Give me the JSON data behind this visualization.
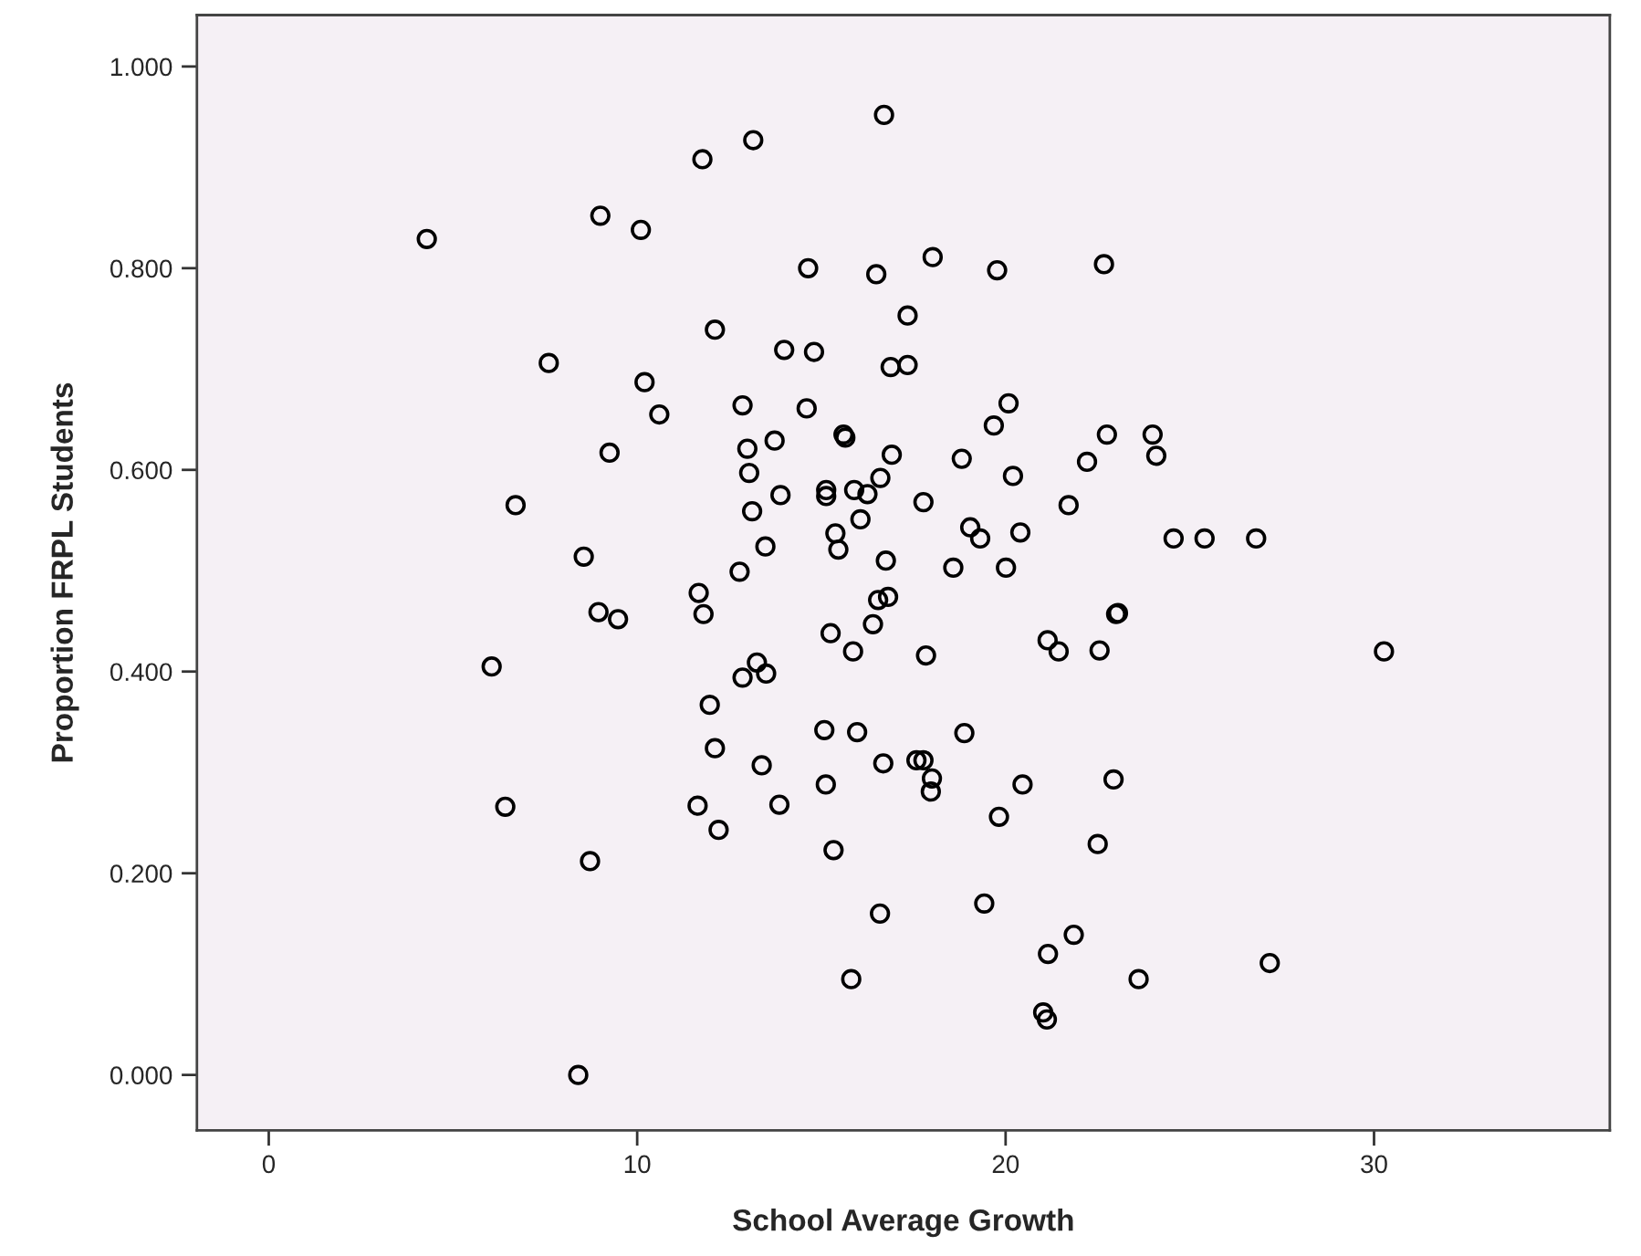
{
  "chart_data": {
    "type": "scatter",
    "xlabel": "School Average Growth",
    "ylabel": "Proportion FRPL Students",
    "xlim": [
      -1.95,
      36.4
    ],
    "ylim": [
      -0.055,
      1.051
    ],
    "xticks": [
      0,
      10,
      20,
      30
    ],
    "yticks": [
      {
        "value": 0,
        "label": "0.000"
      },
      {
        "value": 0.2,
        "label": "0.200"
      },
      {
        "value": 0.4,
        "label": "0.400"
      },
      {
        "value": 0.6,
        "label": "0.600"
      },
      {
        "value": 0.8,
        "label": "0.800"
      },
      {
        "value": 1.0,
        "label": "1.000"
      }
    ],
    "grid": false,
    "marker": "circle",
    "series": [
      {
        "color": "#000000",
        "x": [
          4.29,
          9.0,
          10.1,
          7.6,
          10.2,
          10.6,
          9.25,
          6.7,
          8.55,
          16.7,
          13.15,
          11.77,
          14.64,
          16.49,
          18.02,
          19.77,
          22.67,
          17.34,
          12.11,
          13.99,
          14.8,
          16.88,
          17.34,
          12.86,
          14.6,
          20.08,
          19.68,
          15.6,
          15.65,
          22.75,
          23.99,
          24.09,
          12.99,
          13.73,
          16.91,
          18.81,
          22.21,
          13.04,
          20.2,
          15.13,
          15.13,
          15.89,
          16.25,
          16.6,
          13.89,
          13.12,
          16.06,
          17.77,
          21.71,
          19.04,
          19.31,
          20.4,
          15.38,
          15.46,
          13.48,
          16.75,
          18.58,
          20.01,
          12.78,
          24.56,
          25.4,
          26.8,
          8.95,
          9.48,
          6.05,
          6.42,
          8.72,
          8.4,
          11.67,
          11.8,
          16.54,
          16.81,
          16.4,
          15.25,
          15.86,
          17.84,
          21.14,
          21.44,
          22.55,
          23.0,
          23.05,
          13.25,
          12.86,
          13.5,
          11.97,
          12.11,
          13.38,
          15.08,
          15.97,
          18.88,
          16.68,
          17.58,
          17.77,
          18.0,
          17.97,
          15.12,
          20.46,
          22.93,
          11.64,
          13.86,
          12.21,
          19.82,
          22.5,
          15.33,
          19.42,
          16.59,
          21.85,
          21.15,
          15.81,
          23.61,
          21.02,
          21.12,
          30.27,
          27.17
        ],
        "values": [
          0.829,
          0.852,
          0.838,
          0.706,
          0.687,
          0.655,
          0.617,
          0.565,
          0.514,
          0.952,
          0.927,
          0.908,
          0.8,
          0.794,
          0.811,
          0.798,
          0.804,
          0.753,
          0.739,
          0.719,
          0.717,
          0.702,
          0.704,
          0.664,
          0.661,
          0.666,
          0.644,
          0.635,
          0.632,
          0.635,
          0.635,
          0.614,
          0.621,
          0.629,
          0.615,
          0.611,
          0.608,
          0.597,
          0.594,
          0.58,
          0.574,
          0.58,
          0.576,
          0.592,
          0.575,
          0.559,
          0.551,
          0.568,
          0.565,
          0.543,
          0.532,
          0.538,
          0.537,
          0.521,
          0.524,
          0.51,
          0.503,
          0.503,
          0.499,
          0.532,
          0.532,
          0.532,
          0.459,
          0.452,
          0.405,
          0.266,
          0.212,
          0.0,
          0.478,
          0.457,
          0.471,
          0.474,
          0.447,
          0.438,
          0.42,
          0.416,
          0.431,
          0.42,
          0.421,
          0.457,
          0.458,
          0.409,
          0.394,
          0.398,
          0.367,
          0.324,
          0.307,
          0.342,
          0.34,
          0.339,
          0.309,
          0.312,
          0.312,
          0.294,
          0.281,
          0.288,
          0.288,
          0.293,
          0.267,
          0.268,
          0.243,
          0.256,
          0.229,
          0.223,
          0.17,
          0.16,
          0.139,
          0.12,
          0.095,
          0.095,
          0.062,
          0.055,
          0.42,
          0.111
        ]
      }
    ]
  }
}
